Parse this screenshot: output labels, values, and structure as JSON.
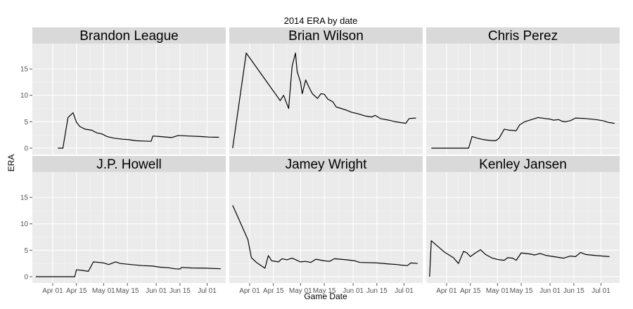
{
  "chart_data": {
    "type": "line",
    "title": "2014 ERA by date",
    "xlabel": "Game Date",
    "ylabel": "ERA",
    "x_range": [
      "2014-03-20",
      "2014-07-12"
    ],
    "ylim": [
      -1.2,
      19.8
    ],
    "x_ticks": [
      {
        "date": "2014-04-01",
        "label": "Apr 01"
      },
      {
        "date": "2014-04-15",
        "label": "Apr 15"
      },
      {
        "date": "2014-05-01",
        "label": "May 01"
      },
      {
        "date": "2014-05-15",
        "label": "May 15"
      },
      {
        "date": "2014-06-01",
        "label": "Jun 01"
      },
      {
        "date": "2014-06-15",
        "label": "Jun 15"
      },
      {
        "date": "2014-07-01",
        "label": "Jul 01"
      }
    ],
    "y_ticks": [
      0,
      5,
      10,
      15
    ],
    "grid": true,
    "line_color": "#000000",
    "panel_background": "#EBEBEB",
    "strip_background": "#D9D9D9",
    "panels": [
      {
        "name": "Brandon League",
        "points": [
          [
            "2014-04-04",
            0
          ],
          [
            "2014-04-07",
            0
          ],
          [
            "2014-04-10",
            5.8
          ],
          [
            "2014-04-13",
            6.7
          ],
          [
            "2014-04-15",
            4.9
          ],
          [
            "2014-04-17",
            4.1
          ],
          [
            "2014-04-20",
            3.6
          ],
          [
            "2014-04-24",
            3.4
          ],
          [
            "2014-04-27",
            2.9
          ],
          [
            "2014-04-30",
            2.7
          ],
          [
            "2014-05-03",
            2.2
          ],
          [
            "2014-05-07",
            1.9
          ],
          [
            "2014-05-12",
            1.7
          ],
          [
            "2014-05-16",
            1.6
          ],
          [
            "2014-05-20",
            1.4
          ],
          [
            "2014-05-24",
            1.35
          ],
          [
            "2014-05-29",
            1.3
          ],
          [
            "2014-05-30",
            2.3
          ],
          [
            "2014-06-03",
            2.2
          ],
          [
            "2014-06-10",
            2.0
          ],
          [
            "2014-06-14",
            2.4
          ],
          [
            "2014-06-20",
            2.3
          ],
          [
            "2014-06-27",
            2.2
          ],
          [
            "2014-07-02",
            2.1
          ],
          [
            "2014-07-08",
            2.05
          ]
        ]
      },
      {
        "name": "Brian Wilson",
        "points": [
          [
            "2014-03-22",
            0
          ],
          [
            "2014-03-30",
            18
          ],
          [
            "2014-04-19",
            9.0
          ],
          [
            "2014-04-21",
            10.0
          ],
          [
            "2014-04-24",
            7.5
          ],
          [
            "2014-04-26",
            15.5
          ],
          [
            "2014-04-28",
            18
          ],
          [
            "2014-04-29",
            14.5
          ],
          [
            "2014-05-01",
            12.5
          ],
          [
            "2014-05-02",
            10.3
          ],
          [
            "2014-05-04",
            12.9
          ],
          [
            "2014-05-06",
            11.5
          ],
          [
            "2014-05-08",
            10.3
          ],
          [
            "2014-05-11",
            9.4
          ],
          [
            "2014-05-13",
            10.3
          ],
          [
            "2014-05-15",
            10.2
          ],
          [
            "2014-05-17",
            9.3
          ],
          [
            "2014-05-20",
            8.8
          ],
          [
            "2014-05-22",
            7.8
          ],
          [
            "2014-05-25",
            7.5
          ],
          [
            "2014-05-28",
            7.2
          ],
          [
            "2014-05-31",
            6.8
          ],
          [
            "2014-06-04",
            6.5
          ],
          [
            "2014-06-08",
            6.1
          ],
          [
            "2014-06-12",
            5.9
          ],
          [
            "2014-06-14",
            6.2
          ],
          [
            "2014-06-17",
            5.6
          ],
          [
            "2014-06-22",
            5.3
          ],
          [
            "2014-06-26",
            5.0
          ],
          [
            "2014-06-30",
            4.8
          ],
          [
            "2014-07-02",
            4.7
          ],
          [
            "2014-07-04",
            5.6
          ],
          [
            "2014-07-08",
            5.7
          ]
        ]
      },
      {
        "name": "Chris Perez",
        "points": [
          [
            "2014-03-23",
            0
          ],
          [
            "2014-04-14",
            0
          ],
          [
            "2014-04-16",
            2.2
          ],
          [
            "2014-04-19",
            1.9
          ],
          [
            "2014-04-23",
            1.6
          ],
          [
            "2014-04-27",
            1.45
          ],
          [
            "2014-04-30",
            1.4
          ],
          [
            "2014-05-02",
            1.9
          ],
          [
            "2014-05-05",
            3.6
          ],
          [
            "2014-05-08",
            3.4
          ],
          [
            "2014-05-12",
            3.3
          ],
          [
            "2014-05-14",
            4.4
          ],
          [
            "2014-05-17",
            5.0
          ],
          [
            "2014-05-21",
            5.4
          ],
          [
            "2014-05-25",
            5.8
          ],
          [
            "2014-05-29",
            5.6
          ],
          [
            "2014-06-01",
            5.5
          ],
          [
            "2014-06-03",
            5.3
          ],
          [
            "2014-06-06",
            5.4
          ],
          [
            "2014-06-08",
            5.1
          ],
          [
            "2014-06-10",
            5.0
          ],
          [
            "2014-06-13",
            5.2
          ],
          [
            "2014-06-16",
            5.7
          ],
          [
            "2014-06-22",
            5.6
          ],
          [
            "2014-06-28",
            5.4
          ],
          [
            "2014-07-02",
            5.2
          ],
          [
            "2014-07-05",
            4.9
          ],
          [
            "2014-07-09",
            4.7
          ]
        ]
      },
      {
        "name": "J.P. Howell",
        "points": [
          [
            "2014-03-22",
            0
          ],
          [
            "2014-04-14",
            0
          ],
          [
            "2014-04-15",
            1.3
          ],
          [
            "2014-04-18",
            1.2
          ],
          [
            "2014-04-22",
            1.0
          ],
          [
            "2014-04-25",
            2.8
          ],
          [
            "2014-04-28",
            2.7
          ],
          [
            "2014-05-01",
            2.6
          ],
          [
            "2014-05-04",
            2.3
          ],
          [
            "2014-05-08",
            2.8
          ],
          [
            "2014-05-11",
            2.5
          ],
          [
            "2014-05-17",
            2.3
          ],
          [
            "2014-05-24",
            2.1
          ],
          [
            "2014-05-30",
            2.0
          ],
          [
            "2014-06-03",
            1.8
          ],
          [
            "2014-06-08",
            1.7
          ],
          [
            "2014-06-12",
            1.5
          ],
          [
            "2014-06-15",
            1.45
          ],
          [
            "2014-06-16",
            1.75
          ],
          [
            "2014-06-22",
            1.65
          ],
          [
            "2014-06-30",
            1.6
          ],
          [
            "2014-07-09",
            1.5
          ]
        ]
      },
      {
        "name": "Jamey Wright",
        "points": [
          [
            "2014-03-22",
            13.5
          ],
          [
            "2014-03-31",
            7.0
          ],
          [
            "2014-04-02",
            3.6
          ],
          [
            "2014-04-05",
            2.7
          ],
          [
            "2014-04-10",
            1.6
          ],
          [
            "2014-04-12",
            4.0
          ],
          [
            "2014-04-14",
            3.0
          ],
          [
            "2014-04-18",
            2.8
          ],
          [
            "2014-04-20",
            3.4
          ],
          [
            "2014-04-23",
            3.2
          ],
          [
            "2014-04-26",
            3.5
          ],
          [
            "2014-05-01",
            2.8
          ],
          [
            "2014-05-04",
            2.9
          ],
          [
            "2014-05-07",
            2.7
          ],
          [
            "2014-05-10",
            3.3
          ],
          [
            "2014-05-15",
            3.0
          ],
          [
            "2014-05-18",
            2.9
          ],
          [
            "2014-05-21",
            3.4
          ],
          [
            "2014-05-28",
            3.2
          ],
          [
            "2014-06-02",
            3.0
          ],
          [
            "2014-06-05",
            2.7
          ],
          [
            "2014-06-15",
            2.6
          ],
          [
            "2014-06-22",
            2.4
          ],
          [
            "2014-06-27",
            2.3
          ],
          [
            "2014-06-29",
            2.2
          ],
          [
            "2014-07-03",
            2.1
          ],
          [
            "2014-07-05",
            2.6
          ],
          [
            "2014-07-09",
            2.5
          ]
        ]
      },
      {
        "name": "Kenley Jansen",
        "points": [
          [
            "2014-03-22",
            0
          ],
          [
            "2014-03-23",
            6.8
          ],
          [
            "2014-03-31",
            4.6
          ],
          [
            "2014-04-05",
            3.6
          ],
          [
            "2014-04-08",
            2.5
          ],
          [
            "2014-04-11",
            4.8
          ],
          [
            "2014-04-13",
            4.5
          ],
          [
            "2014-04-15",
            3.8
          ],
          [
            "2014-04-18",
            4.5
          ],
          [
            "2014-04-21",
            5.1
          ],
          [
            "2014-04-24",
            4.2
          ],
          [
            "2014-04-28",
            3.5
          ],
          [
            "2014-05-02",
            3.2
          ],
          [
            "2014-05-05",
            3.1
          ],
          [
            "2014-05-07",
            3.6
          ],
          [
            "2014-05-10",
            3.5
          ],
          [
            "2014-05-12",
            3.1
          ],
          [
            "2014-05-15",
            4.5
          ],
          [
            "2014-05-20",
            4.3
          ],
          [
            "2014-05-23",
            4.1
          ],
          [
            "2014-05-26",
            4.4
          ],
          [
            "2014-05-30",
            4.0
          ],
          [
            "2014-06-05",
            3.7
          ],
          [
            "2014-06-09",
            3.5
          ],
          [
            "2014-06-13",
            3.9
          ],
          [
            "2014-06-16",
            3.8
          ],
          [
            "2014-06-19",
            4.6
          ],
          [
            "2014-06-22",
            4.2
          ],
          [
            "2014-06-28",
            4.0
          ],
          [
            "2014-07-02",
            3.9
          ],
          [
            "2014-07-06",
            3.8
          ]
        ]
      }
    ]
  }
}
